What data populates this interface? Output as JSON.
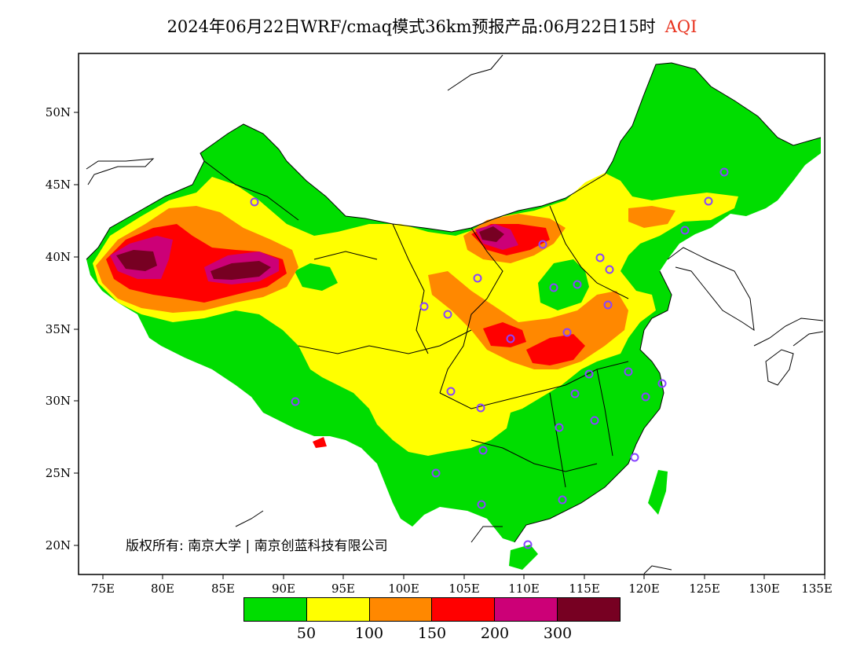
{
  "title": {
    "text": "2024年06月22日WRF/cmaq模式36km预报产品:06月22日15时",
    "aqi_label": "AQI"
  },
  "axes": {
    "y_ticks": [
      "50N",
      "45N",
      "40N",
      "35N",
      "30N",
      "25N",
      "20N"
    ],
    "x_ticks": [
      "75E",
      "80E",
      "85E",
      "90E",
      "95E",
      "100E",
      "105E",
      "110E",
      "115E",
      "120E",
      "125E",
      "130E",
      "135E"
    ]
  },
  "copyright": "版权所有: 南京大学 | 南京创蓝科技有限公司",
  "legend": {
    "colors": [
      "#00dd00",
      "#ffff00",
      "#ff8800",
      "#ff0000",
      "#cc0077",
      "#770022"
    ],
    "thresholds": [
      "50",
      "100",
      "150",
      "200",
      "300"
    ]
  },
  "colors": {
    "good": "#00dd00",
    "moderate": "#ffff00",
    "sensitive": "#ff8800",
    "unhealthy": "#ff0000",
    "very_unhealthy": "#cc0077",
    "hazardous": "#770022",
    "station_marker": "#8844ff"
  }
}
